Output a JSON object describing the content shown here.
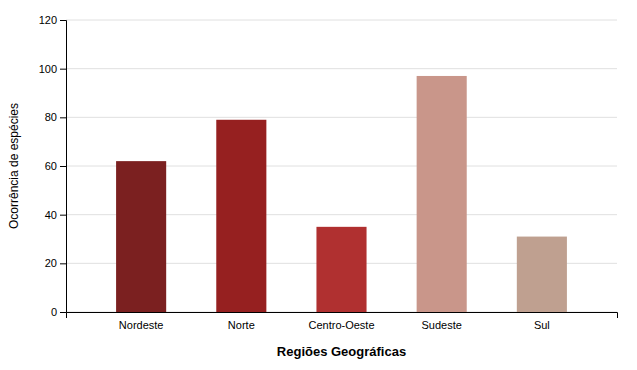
{
  "chart_data": {
    "type": "bar",
    "categories": [
      "Nordeste",
      "Norte",
      "Centro-Oeste",
      "Sudeste",
      "Sul"
    ],
    "values": [
      62,
      79,
      35,
      97,
      31
    ],
    "colors": [
      "#7B2020",
      "#962020",
      "#B03030",
      "#C9968A",
      "#BFA090"
    ],
    "xlabel": "Regiões Geográficas",
    "ylabel": "Ocorrência de espécies",
    "ylim": [
      0,
      120
    ],
    "yticks": [
      0,
      20,
      40,
      60,
      80,
      100,
      120
    ],
    "grid": true
  }
}
